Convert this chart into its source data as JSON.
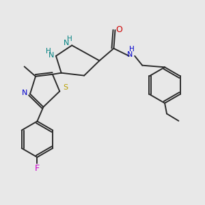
{
  "bg_color": "#e8e8e8",
  "bond_color": "#2a2a2a",
  "bond_width": 1.4,
  "figsize": [
    3.0,
    3.0
  ],
  "dpi": 100,
  "xlim": [
    0,
    10
  ],
  "ylim": [
    0,
    10
  ],
  "n_color": "#008080",
  "n2_color": "#0000cc",
  "s_color": "#b8a000",
  "o_color": "#cc0000",
  "f_color": "#cc00cc",
  "text_color": "#2a2a2a"
}
